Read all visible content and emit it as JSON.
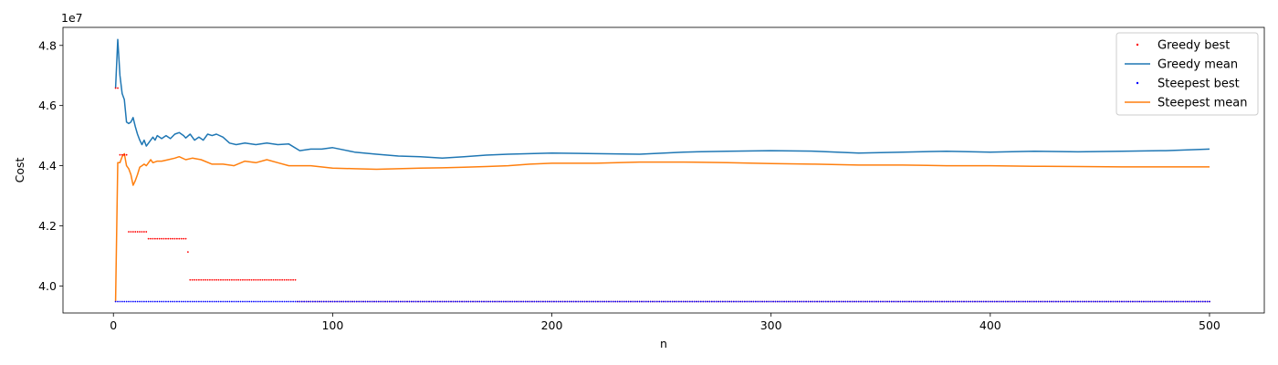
{
  "chart_data": {
    "type": "line",
    "title": "",
    "xlabel": "n",
    "ylabel": "Cost",
    "offset_label": "1e7",
    "xlim": [
      -23,
      525
    ],
    "ylim": [
      39.1,
      48.6
    ],
    "xticks": [
      0,
      100,
      200,
      300,
      400,
      500
    ],
    "xtick_labels": [
      "0",
      "100",
      "200",
      "300",
      "400",
      "500"
    ],
    "yticks": [
      40.0,
      42.0,
      44.0,
      46.0,
      48.0
    ],
    "ytick_labels": [
      "4.0",
      "4.2",
      "4.4",
      "4.6",
      "4.8"
    ],
    "grid": false,
    "legend_position": "top-right",
    "series": [
      {
        "name": "Greedy best",
        "style": "points",
        "color": "#ff0000",
        "segments": [
          {
            "x": [
              1,
              2
            ],
            "value": 46.58
          },
          {
            "x": [
              3,
              6
            ],
            "value": 44.36
          },
          {
            "x": [
              7,
              15
            ],
            "value": 41.8
          },
          {
            "x": [
              16,
              33
            ],
            "value": 41.57
          },
          {
            "x": [
              34,
              34
            ],
            "value": 41.13
          },
          {
            "x": [
              35,
              83
            ],
            "value": 40.2
          },
          {
            "x": [
              84,
              500
            ],
            "value": 39.48
          }
        ]
      },
      {
        "name": "Greedy mean",
        "style": "line",
        "color": "#1f77b4",
        "x": [
          1,
          2,
          3,
          4,
          5,
          6,
          7,
          8,
          9,
          10,
          11,
          12,
          13,
          14,
          15,
          16,
          17,
          18,
          19,
          20,
          22,
          24,
          26,
          28,
          30,
          32,
          33,
          35,
          37,
          39,
          41,
          43,
          45,
          47,
          50,
          53,
          56,
          60,
          65,
          70,
          75,
          80,
          85,
          90,
          95,
          100,
          110,
          120,
          130,
          140,
          150,
          160,
          170,
          180,
          190,
          200,
          220,
          240,
          260,
          280,
          300,
          320,
          340,
          360,
          380,
          400,
          420,
          440,
          460,
          480,
          500
        ],
        "y": [
          46.58,
          48.2,
          47.0,
          46.4,
          46.2,
          45.45,
          45.4,
          45.45,
          45.6,
          45.3,
          45.05,
          44.85,
          44.7,
          44.85,
          44.65,
          44.75,
          44.85,
          44.95,
          44.85,
          45.0,
          44.9,
          45.0,
          44.9,
          45.05,
          45.1,
          45.0,
          44.92,
          45.05,
          44.85,
          44.95,
          44.85,
          45.05,
          45.0,
          45.05,
          44.95,
          44.75,
          44.7,
          44.75,
          44.7,
          44.75,
          44.7,
          44.72,
          44.5,
          44.55,
          44.55,
          44.6,
          44.45,
          44.38,
          44.32,
          44.3,
          44.25,
          44.3,
          44.35,
          44.38,
          44.4,
          44.42,
          44.4,
          44.38,
          44.45,
          44.48,
          44.5,
          44.48,
          44.42,
          44.45,
          44.48,
          44.45,
          44.48,
          44.46,
          44.48,
          44.5,
          44.55
        ]
      },
      {
        "name": "Steepest best",
        "style": "points",
        "color": "#0000ff",
        "segments": [
          {
            "x": [
              1,
              500
            ],
            "value": 39.48
          }
        ]
      },
      {
        "name": "Steepest mean",
        "style": "line",
        "color": "#ff7f0e",
        "x": [
          1,
          2,
          3,
          4,
          5,
          6,
          7,
          8,
          9,
          10,
          11,
          12,
          13,
          14,
          15,
          16,
          17,
          18,
          20,
          22,
          25,
          28,
          30,
          33,
          36,
          40,
          45,
          50,
          55,
          60,
          65,
          70,
          75,
          80,
          90,
          100,
          110,
          120,
          130,
          140,
          150,
          160,
          170,
          180,
          190,
          200,
          220,
          240,
          260,
          280,
          300,
          320,
          340,
          360,
          380,
          400,
          420,
          440,
          460,
          480,
          500
        ],
        "y": [
          39.48,
          44.1,
          44.1,
          44.3,
          44.4,
          44.0,
          43.9,
          43.7,
          43.35,
          43.5,
          43.7,
          43.95,
          44.0,
          44.05,
          44.0,
          44.1,
          44.2,
          44.1,
          44.15,
          44.15,
          44.2,
          44.25,
          44.3,
          44.2,
          44.25,
          44.2,
          44.05,
          44.05,
          44.0,
          44.15,
          44.1,
          44.2,
          44.1,
          44.0,
          44.0,
          43.92,
          43.9,
          43.88,
          43.9,
          43.92,
          43.93,
          43.95,
          43.97,
          44.0,
          44.05,
          44.08,
          44.08,
          44.12,
          44.12,
          44.1,
          44.07,
          44.05,
          44.02,
          44.02,
          44.0,
          44.0,
          43.98,
          43.97,
          43.96,
          43.96,
          43.96
        ]
      }
    ]
  }
}
